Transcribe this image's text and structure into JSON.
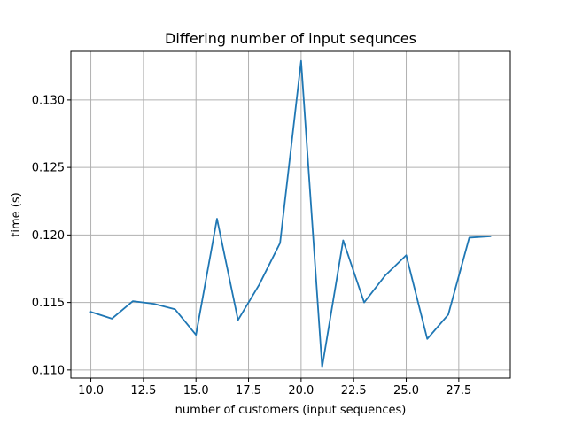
{
  "chart_data": {
    "type": "line",
    "title": "Differing number of input sequnces",
    "xlabel": "number of customers (input sequences)",
    "ylabel": "time (s)",
    "grid": true,
    "xlim": [
      9.05,
      29.95
    ],
    "ylim": [
      0.1094,
      0.1336
    ],
    "x_ticks": [
      10.0,
      12.5,
      15.0,
      17.5,
      20.0,
      22.5,
      25.0,
      27.5
    ],
    "x_tick_labels": [
      "10.0",
      "12.5",
      "15.0",
      "17.5",
      "20.0",
      "22.5",
      "25.0",
      "27.5"
    ],
    "y_ticks": [
      0.11,
      0.115,
      0.12,
      0.125,
      0.13
    ],
    "y_tick_labels": [
      "0.110",
      "0.115",
      "0.120",
      "0.125",
      "0.130"
    ],
    "series": [
      {
        "name": "time",
        "color": "#1f77b4",
        "x": [
          10,
          11,
          12,
          13,
          14,
          15,
          16,
          17,
          18,
          19,
          20,
          21,
          22,
          23,
          24,
          25,
          26,
          27,
          28,
          29
        ],
        "values": [
          0.1143,
          0.1138,
          0.1151,
          0.1149,
          0.1145,
          0.1126,
          0.1212,
          0.1137,
          0.1163,
          0.1194,
          0.1329,
          0.1102,
          0.1196,
          0.115,
          0.117,
          0.1185,
          0.1123,
          0.1141,
          0.1198,
          0.1199
        ]
      }
    ]
  }
}
